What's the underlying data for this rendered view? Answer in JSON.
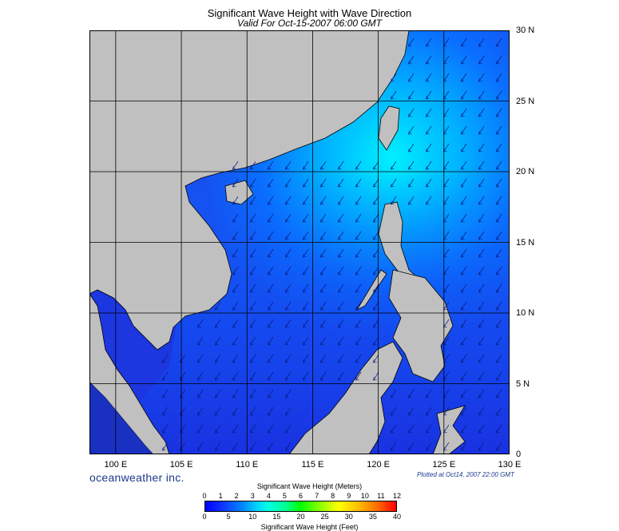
{
  "header": {
    "title": "Significant Wave Height with Wave Direction",
    "subtitle": "Valid For Oct-15-2007 06:00 GMT"
  },
  "map": {
    "region": {
      "lon_min": 98,
      "lon_max": 130,
      "lat_min": 0,
      "lat_max": 30
    },
    "longitude_labels": [
      "100 E",
      "105 E",
      "110 E",
      "115 E",
      "120 E",
      "125 E",
      "130 E"
    ],
    "longitude_values": [
      100,
      105,
      110,
      115,
      120,
      125,
      130
    ],
    "latitude_labels": [
      "30 N",
      "25 N",
      "20 N",
      "15 N",
      "10 N",
      "5 N",
      "0"
    ],
    "latitude_values": [
      30,
      25,
      20,
      15,
      10,
      5,
      0
    ],
    "colors": {
      "land": "#c0c0c0",
      "ocean_low": "#1a3cf0",
      "ocean_mid": "#0a78ff",
      "ocean_high": "#00e6ff",
      "grid": "#000000"
    },
    "wave_direction": "toward southwest"
  },
  "footer": {
    "brand": "oceanweather inc.",
    "plotted": "Plotted at Oct14, 2007 22:00 GMT"
  },
  "colorbar": {
    "title_meters": "Significant Wave Height (Meters)",
    "title_feet": "Significant Wave Height (Feet)",
    "meters_ticks": [
      "0",
      "1",
      "2",
      "3",
      "4",
      "5",
      "6",
      "7",
      "8",
      "9",
      "10",
      "11",
      "12"
    ],
    "feet_ticks": [
      "0",
      "5",
      "10",
      "15",
      "20",
      "25",
      "30",
      "35",
      "40"
    ]
  }
}
